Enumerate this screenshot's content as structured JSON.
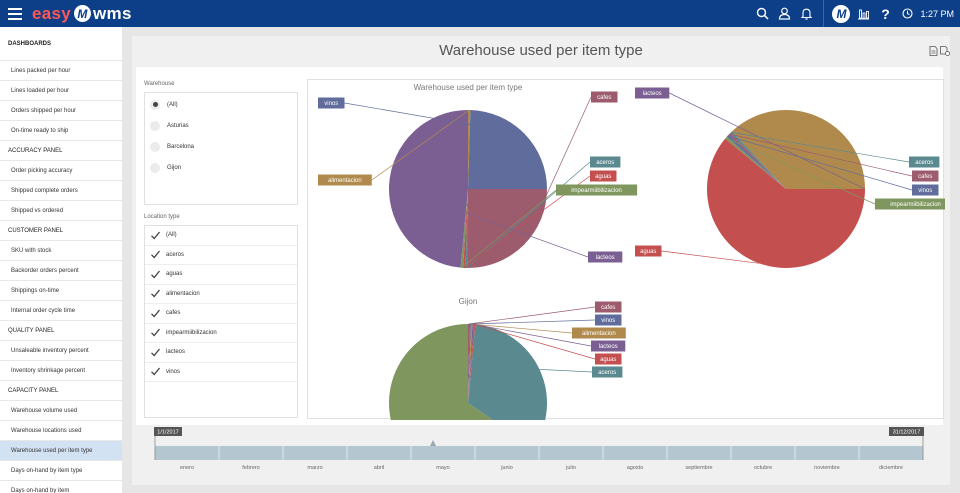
{
  "header": {
    "logo_left": "easy",
    "logo_mark": "M",
    "logo_right": "wms",
    "time": "1:27 PM",
    "icons": [
      "search-icon",
      "user-icon",
      "bell-icon",
      "company-logo",
      "chart-icon",
      "help-icon",
      "clock-icon"
    ]
  },
  "sidebar": {
    "items": [
      {
        "label": "DASHBOARDS",
        "kind": "section"
      },
      {
        "label": "Lines packed per hour",
        "kind": "sub"
      },
      {
        "label": "Lines loaded per hour",
        "kind": "sub"
      },
      {
        "label": "Orders shipped per hour",
        "kind": "sub"
      },
      {
        "label": "On-time ready to ship",
        "kind": "sub"
      },
      {
        "label": "ACCURACY PANEL",
        "kind": "section"
      },
      {
        "label": "Order picking accuracy",
        "kind": "sub"
      },
      {
        "label": "Shipped complete orders",
        "kind": "sub"
      },
      {
        "label": "Shipped vs ordered",
        "kind": "sub"
      },
      {
        "label": "CUSTOMER PANEL",
        "kind": "section"
      },
      {
        "label": "SKU with stock",
        "kind": "sub"
      },
      {
        "label": "Backorder orders percent",
        "kind": "sub"
      },
      {
        "label": "Shippings on-time",
        "kind": "sub"
      },
      {
        "label": "Internal order cycle time",
        "kind": "sub"
      },
      {
        "label": "QUALITY PANEL",
        "kind": "section"
      },
      {
        "label": "Unsaleable inventory percent",
        "kind": "sub"
      },
      {
        "label": "Inventory shrinkage percent",
        "kind": "sub"
      },
      {
        "label": "CAPACITY PANEL",
        "kind": "section"
      },
      {
        "label": "Warehouse volume used",
        "kind": "sub"
      },
      {
        "label": "Warehouse locations used",
        "kind": "sub"
      },
      {
        "label": "Warehouse used per item type",
        "kind": "sub",
        "active": true
      },
      {
        "label": "Days on-hand by item type",
        "kind": "sub"
      },
      {
        "label": "Days on-hand by item",
        "kind": "sub"
      }
    ]
  },
  "page": {
    "title": "Warehouse used per item type"
  },
  "filters": {
    "warehouse_label": "Warehouse",
    "warehouse_options": [
      {
        "label": "(All)",
        "selected": true
      },
      {
        "label": "Asturias",
        "selected": false
      },
      {
        "label": "Barcelona",
        "selected": false
      },
      {
        "label": "Gijon",
        "selected": false
      }
    ],
    "location_label": "Location type",
    "location_options": [
      "(All)",
      "aceros",
      "aguas",
      "alimentacion",
      "cafes",
      "impearmiibilizacion",
      "lacteos",
      "vinos"
    ]
  },
  "colors": {
    "vinos": "#5f6c9c",
    "cafes": "#9c5c6e",
    "aceros": "#5a8a90",
    "aguas": "#c44f4f",
    "impearmiibilizacion": "#7f975e",
    "lacteos": "#7b5f93",
    "alimentacion": "#b08a4c"
  },
  "chart_data": [
    {
      "type": "pie",
      "title": "Warehouse used per item type",
      "slices": [
        {
          "label": "cafes",
          "value": 25
        },
        {
          "label": "aceros",
          "value": 0.5
        },
        {
          "label": "aguas",
          "value": 0.5
        },
        {
          "label": "impearmiibilizacion",
          "value": 0.5
        },
        {
          "label": "lacteos",
          "value": 48.5
        },
        {
          "label": "alimentacion",
          "value": 0.5
        },
        {
          "label": "vinos",
          "value": 24.5
        }
      ],
      "callout_labels": [
        "vinos",
        "cafes",
        "alimentacion",
        "aceros",
        "aguas",
        "impearmiibilizacion",
        "lacteos"
      ]
    },
    {
      "type": "pie",
      "title": "",
      "slices": [
        {
          "label": "alimentacion",
          "value": 37
        },
        {
          "label": "aceros",
          "value": 0.5
        },
        {
          "label": "cafes",
          "value": 0.5
        },
        {
          "label": "vinos",
          "value": 0.5
        },
        {
          "label": "impearmiibilizacion",
          "value": 0.5
        },
        {
          "label": "aguas",
          "value": 61
        },
        {
          "label": "lacteos",
          "value": 0.01
        }
      ],
      "callout_labels": [
        "lacteos",
        "aceros",
        "cafes",
        "vinos",
        "impearmiibilizacion",
        "aguas"
      ]
    },
    {
      "type": "pie",
      "title": "Gijon",
      "slices": [
        {
          "label": "cafes",
          "value": 0.3
        },
        {
          "label": "vinos",
          "value": 0.3
        },
        {
          "label": "alimentacion",
          "value": 0.3
        },
        {
          "label": "lacteos",
          "value": 0.3
        },
        {
          "label": "aguas",
          "value": 0.3
        },
        {
          "label": "aceros",
          "value": 33
        },
        {
          "label": "impearmiibilizacion",
          "value": 65.5
        }
      ],
      "callout_labels": [
        "cafes",
        "vinos",
        "alimentacion",
        "lacteos",
        "aguas",
        "aceros"
      ]
    }
  ],
  "timeline": {
    "start": "1/1/2017",
    "end": "31/12/2017",
    "months": [
      "enero",
      "febrero",
      "marzo",
      "abril",
      "mayo",
      "junio",
      "julio",
      "agosto",
      "septiembre",
      "octubre",
      "noviembre",
      "diciembre"
    ]
  }
}
